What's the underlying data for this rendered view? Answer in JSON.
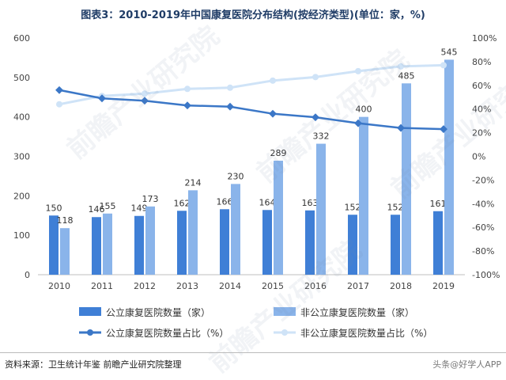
{
  "title": "图表3：2010-2019年中国康复医院分布结构(按经济类型)(单位：家，%)",
  "source": "资料来源：卫生统计年鉴 前瞻产业研究院整理",
  "credit": "头条@好学人APP",
  "watermark": "前瞻产业研究院",
  "colors": {
    "public_bar": "#3f7fd6",
    "private_bar": "#8ab4ea",
    "public_line": "#3b77c7",
    "private_line": "#cfe3f7",
    "axis_text": "#444444",
    "grid": "#e6e6e6"
  },
  "chart_data": {
    "type": "bar",
    "categories": [
      "2010",
      "2011",
      "2012",
      "2013",
      "2014",
      "2015",
      "2016",
      "2017",
      "2018",
      "2019"
    ],
    "series": [
      {
        "name": "公立康复医院数量（家）",
        "kind": "bar",
        "axis": "left",
        "values": [
          150,
          146,
          149,
          162,
          166,
          164,
          163,
          152,
          152,
          161
        ]
      },
      {
        "name": "非公立康复医院数量（家）",
        "kind": "bar",
        "axis": "left",
        "values": [
          118,
          155,
          173,
          214,
          230,
          289,
          332,
          400,
          485,
          545
        ]
      },
      {
        "name": "公立康复医院数量占比（%）",
        "kind": "line",
        "axis": "right",
        "values": [
          56,
          49,
          47,
          43,
          42,
          36,
          33,
          28,
          24,
          23
        ]
      },
      {
        "name": "非公立康复医院数量占比（%）",
        "kind": "line",
        "axis": "right",
        "values": [
          44,
          51,
          53,
          57,
          58,
          64,
          67,
          72,
          76,
          77
        ]
      }
    ],
    "y_left": {
      "min": 0,
      "max": 600,
      "ticks": [
        "0",
        "100",
        "200",
        "300",
        "400",
        "500",
        "600"
      ]
    },
    "y_right": {
      "min": -100,
      "max": 100,
      "ticks": [
        "-100%",
        "-80%",
        "-60%",
        "-40%",
        "-20%",
        "0%",
        "20%",
        "40%",
        "60%",
        "80%",
        "100%"
      ]
    },
    "grid": false,
    "legend_position": "bottom"
  }
}
